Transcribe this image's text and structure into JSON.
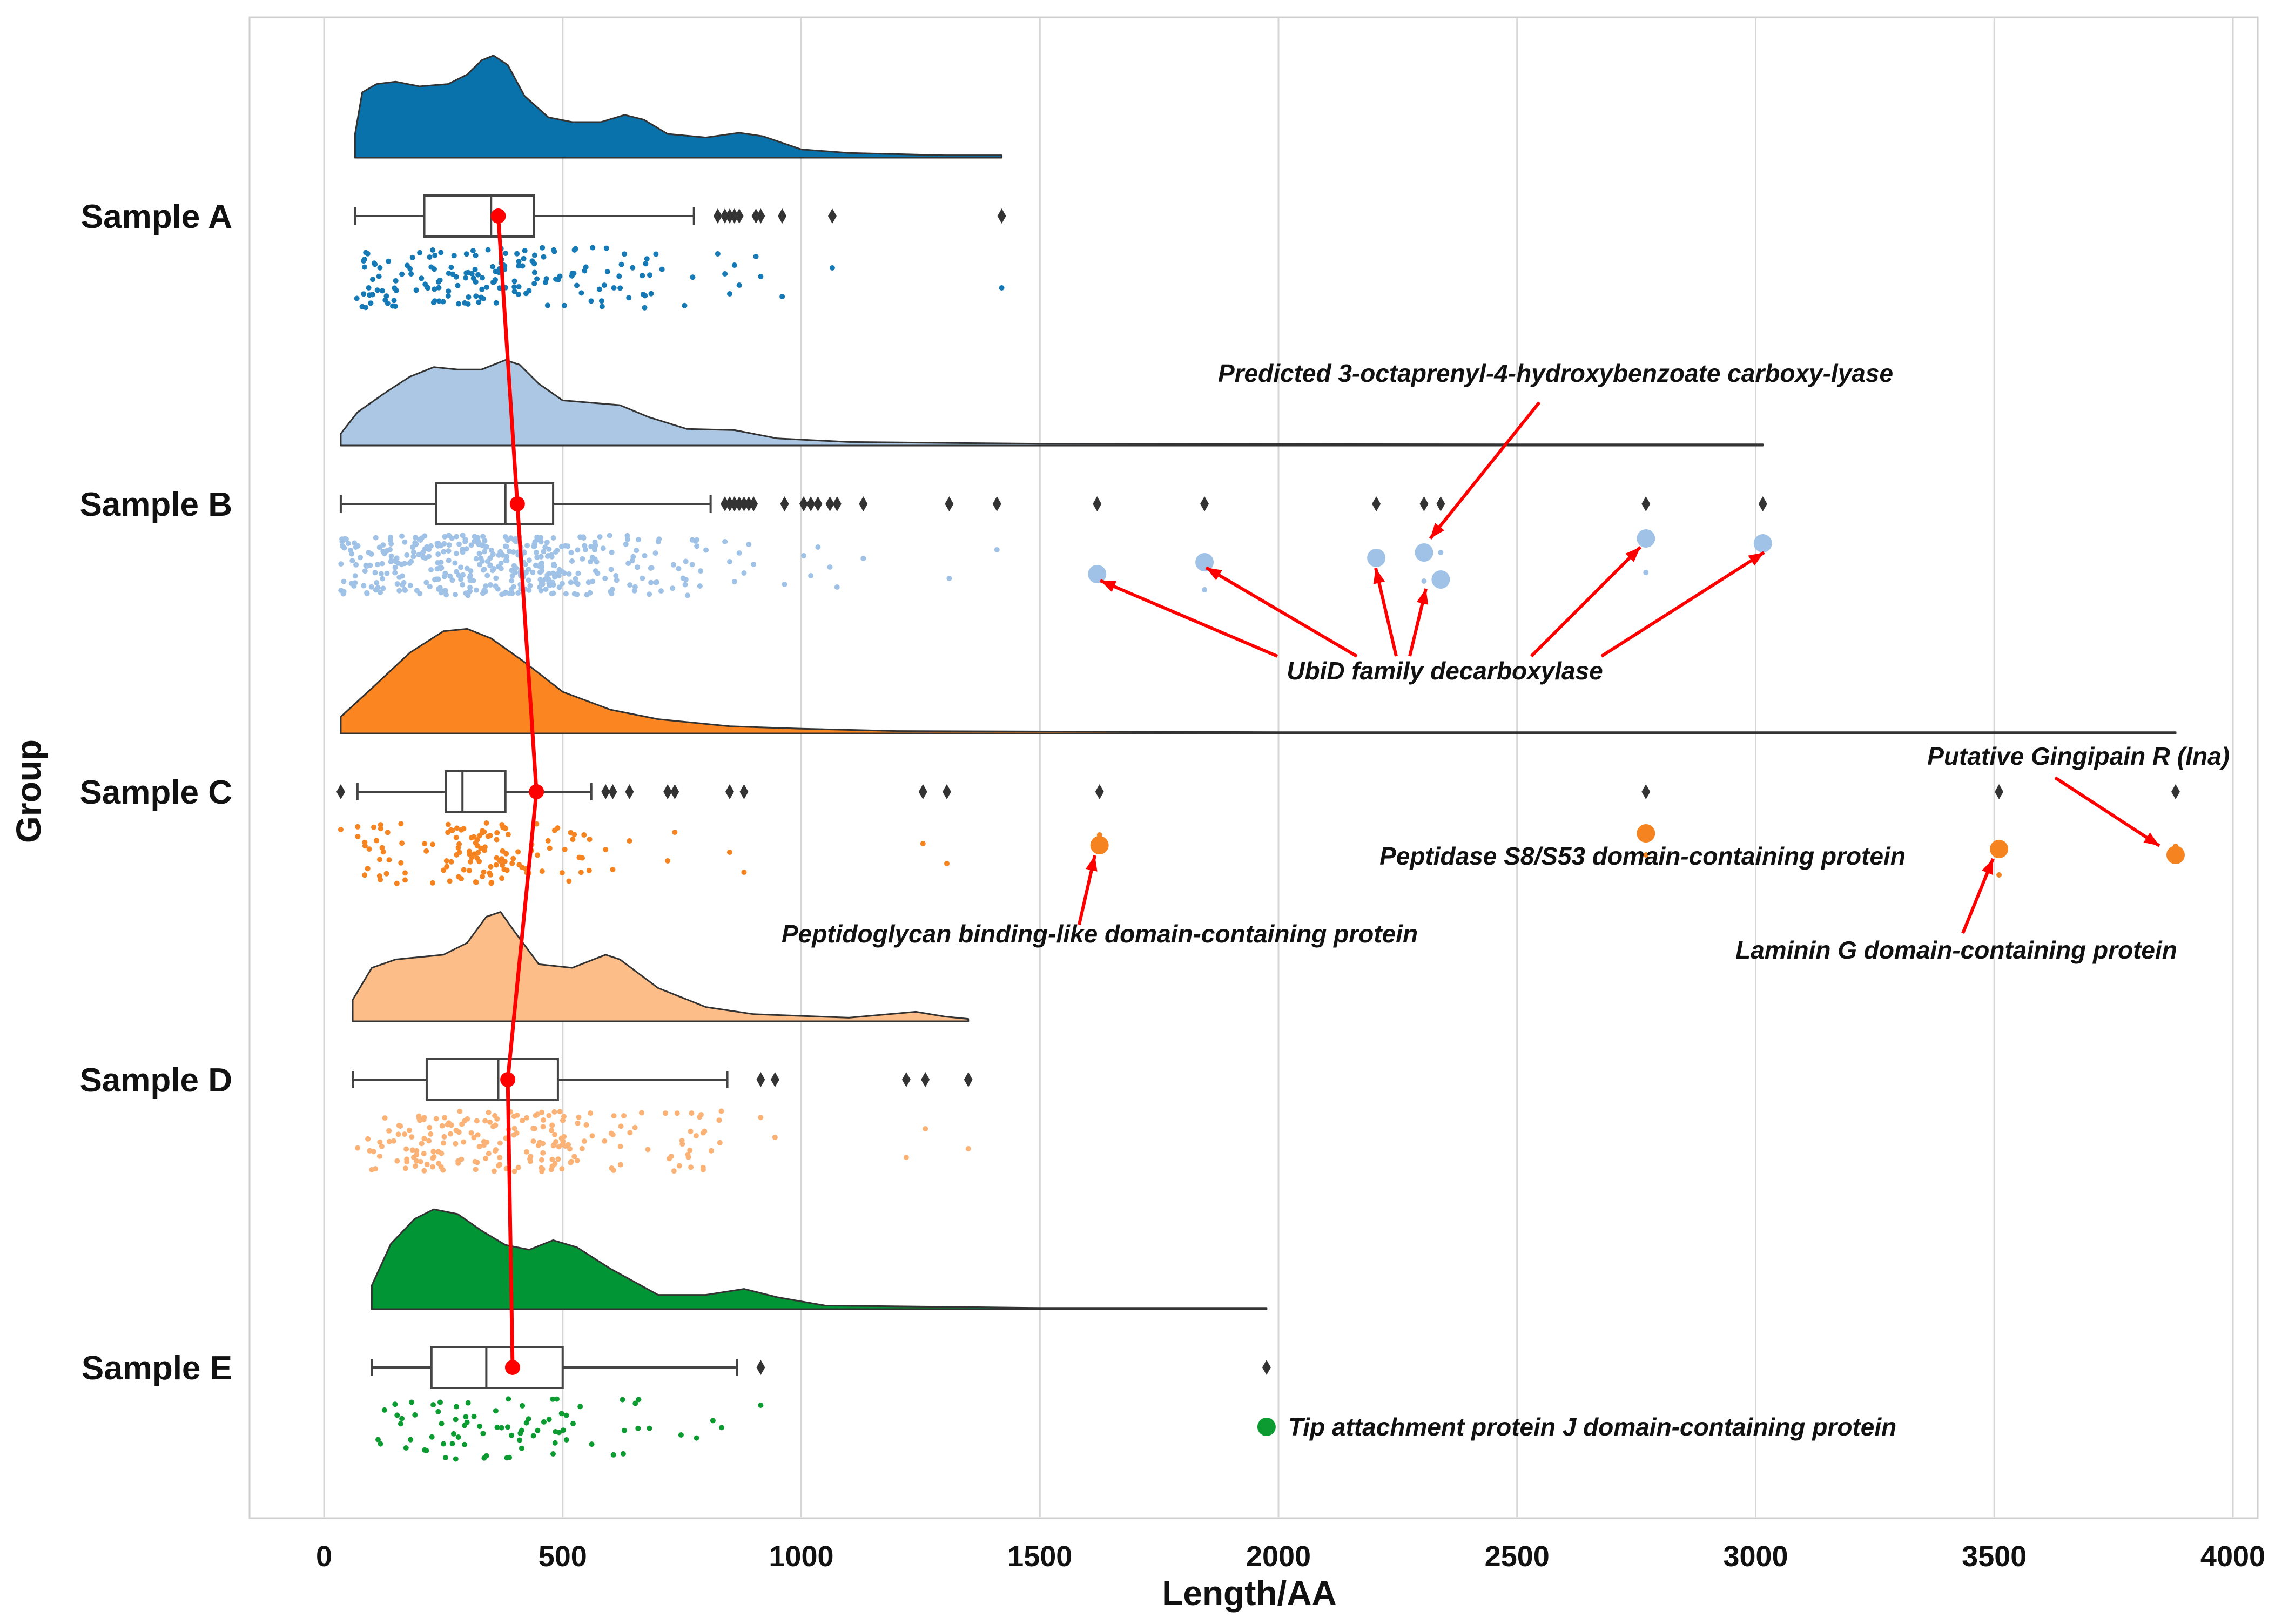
{
  "chart_data": {
    "type": "raincloud",
    "xlabel": "Length/AA",
    "ylabel": "Group",
    "xlim": [
      -150,
      4050
    ],
    "x_ticks": [
      0,
      500,
      1000,
      1500,
      2000,
      2500,
      3000,
      3500,
      4000
    ],
    "grid": "vertical",
    "groups": [
      {
        "name": "Sample A",
        "color": "#0a72aa",
        "point_color": "#1479b5",
        "box": {
          "whisker_low": 65,
          "q1": 210,
          "median": 350,
          "q3": 440,
          "whisker_high": 775
        },
        "mean": 365,
        "outliers": [
          825,
          840,
          850,
          860,
          870,
          905,
          915,
          960,
          1065,
          1420
        ],
        "density": [
          [
            65,
            0.2
          ],
          [
            80,
            0.55
          ],
          [
            110,
            0.62
          ],
          [
            150,
            0.64
          ],
          [
            200,
            0.6
          ],
          [
            260,
            0.62
          ],
          [
            300,
            0.7
          ],
          [
            330,
            0.82
          ],
          [
            355,
            0.86
          ],
          [
            385,
            0.78
          ],
          [
            420,
            0.52
          ],
          [
            470,
            0.34
          ],
          [
            520,
            0.3
          ],
          [
            580,
            0.3
          ],
          [
            630,
            0.36
          ],
          [
            670,
            0.32
          ],
          [
            720,
            0.2
          ],
          [
            800,
            0.17
          ],
          [
            870,
            0.21
          ],
          [
            920,
            0.18
          ],
          [
            1000,
            0.07
          ],
          [
            1100,
            0.04
          ],
          [
            1300,
            0.02
          ],
          [
            1420,
            0.02
          ]
        ]
      },
      {
        "name": "Sample B",
        "color": "#abc7e3",
        "point_color": "#9fc2e6",
        "box": {
          "whisker_low": 35,
          "q1": 235,
          "median": 380,
          "q3": 480,
          "whisker_high": 810
        },
        "mean": 405,
        "outliers": [
          840,
          850,
          860,
          870,
          880,
          890,
          900,
          965,
          1005,
          1020,
          1035,
          1060,
          1075,
          1130,
          1310,
          1410,
          1620,
          1845,
          2205,
          2305,
          2340,
          2770,
          3015
        ],
        "density": [
          [
            35,
            0.1
          ],
          [
            70,
            0.28
          ],
          [
            130,
            0.45
          ],
          [
            180,
            0.58
          ],
          [
            230,
            0.66
          ],
          [
            280,
            0.64
          ],
          [
            330,
            0.64
          ],
          [
            380,
            0.72
          ],
          [
            410,
            0.68
          ],
          [
            450,
            0.52
          ],
          [
            500,
            0.38
          ],
          [
            560,
            0.36
          ],
          [
            620,
            0.34
          ],
          [
            680,
            0.24
          ],
          [
            760,
            0.14
          ],
          [
            860,
            0.13
          ],
          [
            950,
            0.06
          ],
          [
            1100,
            0.03
          ],
          [
            1500,
            0.015
          ],
          [
            2500,
            0.01
          ],
          [
            3015,
            0.01
          ]
        ]
      },
      {
        "name": "Sample C",
        "color": "#fb8521",
        "point_color": "#f58420",
        "box": {
          "whisker_low": 70,
          "q1": 255,
          "median": 290,
          "q3": 380,
          "whisker_high": 560
        },
        "mean": 445,
        "outliers": [
          35,
          590,
          605,
          640,
          720,
          735,
          850,
          880,
          1255,
          1305,
          1625,
          2770,
          3510,
          3880
        ],
        "density": [
          [
            35,
            0.14
          ],
          [
            100,
            0.38
          ],
          [
            180,
            0.68
          ],
          [
            250,
            0.86
          ],
          [
            300,
            0.88
          ],
          [
            350,
            0.8
          ],
          [
            420,
            0.6
          ],
          [
            500,
            0.35
          ],
          [
            600,
            0.2
          ],
          [
            700,
            0.12
          ],
          [
            850,
            0.06
          ],
          [
            1000,
            0.04
          ],
          [
            1200,
            0.02
          ],
          [
            2000,
            0.01
          ],
          [
            3000,
            0.01
          ],
          [
            3880,
            0.01
          ]
        ]
      },
      {
        "name": "Sample D",
        "color": "#fdbd88",
        "point_color": "#fbb276",
        "box": {
          "whisker_low": 60,
          "q1": 215,
          "median": 365,
          "q3": 490,
          "whisker_high": 845
        },
        "mean": 385,
        "outliers": [
          915,
          945,
          1220,
          1260,
          1350
        ],
        "density": [
          [
            60,
            0.18
          ],
          [
            100,
            0.45
          ],
          [
            150,
            0.52
          ],
          [
            200,
            0.54
          ],
          [
            250,
            0.56
          ],
          [
            300,
            0.66
          ],
          [
            340,
            0.88
          ],
          [
            370,
            0.92
          ],
          [
            400,
            0.75
          ],
          [
            450,
            0.48
          ],
          [
            520,
            0.45
          ],
          [
            590,
            0.56
          ],
          [
            620,
            0.52
          ],
          [
            700,
            0.28
          ],
          [
            800,
            0.12
          ],
          [
            900,
            0.06
          ],
          [
            1100,
            0.03
          ],
          [
            1240,
            0.08
          ],
          [
            1300,
            0.04
          ],
          [
            1350,
            0.02
          ]
        ]
      },
      {
        "name": "Sample E",
        "color": "#019535",
        "point_color": "#0b9b30",
        "box": {
          "whisker_low": 100,
          "q1": 225,
          "median": 340,
          "q3": 500,
          "whisker_high": 865
        },
        "mean": 395,
        "outliers": [
          915,
          1975
        ],
        "density": [
          [
            100,
            0.2
          ],
          [
            140,
            0.55
          ],
          [
            190,
            0.76
          ],
          [
            230,
            0.84
          ],
          [
            280,
            0.8
          ],
          [
            330,
            0.66
          ],
          [
            380,
            0.54
          ],
          [
            430,
            0.5
          ],
          [
            480,
            0.58
          ],
          [
            530,
            0.52
          ],
          [
            600,
            0.34
          ],
          [
            700,
            0.12
          ],
          [
            800,
            0.12
          ],
          [
            880,
            0.17
          ],
          [
            950,
            0.1
          ],
          [
            1050,
            0.03
          ],
          [
            1500,
            0.01
          ],
          [
            1975,
            0.01
          ]
        ]
      }
    ],
    "annotations": [
      {
        "text": "Predicted 3-octaprenyl-4-hydroxybenzoate carboxy-lyase",
        "group": "Sample B"
      },
      {
        "text": "UbiD family decarboxylase",
        "group": "Sample B"
      },
      {
        "text": "Putative Gingipain R (Ina)",
        "group": "Sample C"
      },
      {
        "text": "Peptidase S8/S53 domain-containing protein",
        "group": "Sample C"
      },
      {
        "text": "Laminin G domain-containing protein",
        "group": "Sample C"
      },
      {
        "text": "Peptidoglycan binding-like domain-containing protein",
        "group": "Sample C"
      },
      {
        "text": "Tip attachment protein J domain-containing protein",
        "group": "Sample E"
      }
    ],
    "highlight_color": "#ff0000",
    "mean_line_color": "#ff0000"
  }
}
